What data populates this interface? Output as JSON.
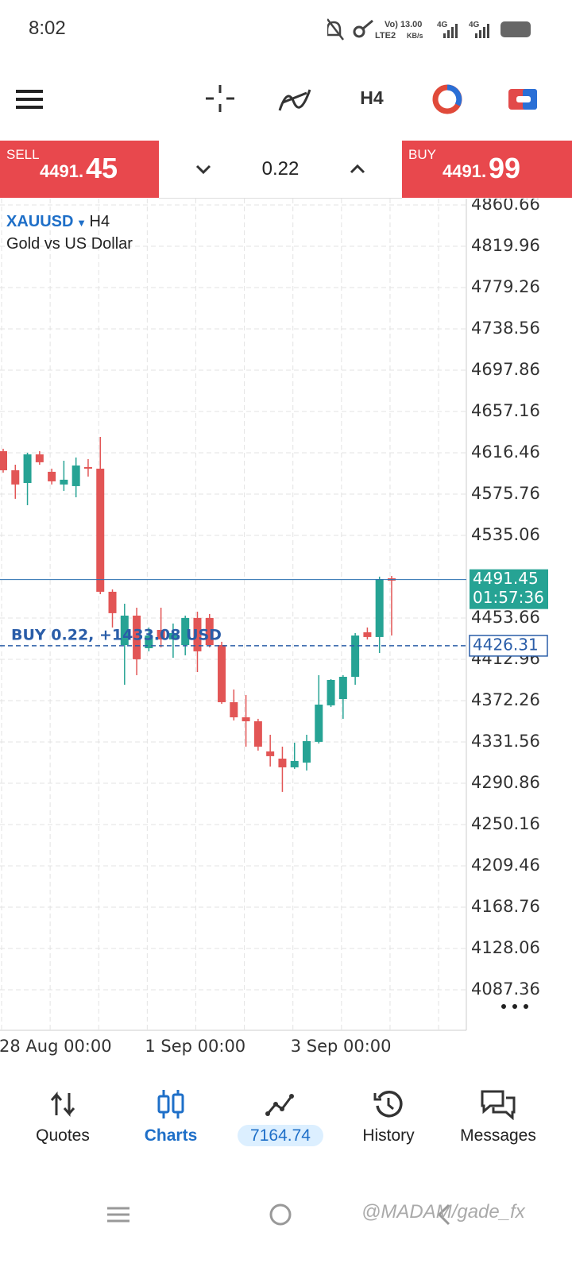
{
  "status_bar": {
    "time": "8:02",
    "speed": "3.00",
    "speed_unit": "KB/s",
    "network_1": "4G",
    "network_2": "4G",
    "sim": "LTE2"
  },
  "toolbar": {
    "timeframe": "H4"
  },
  "trade_panel": {
    "sell_label": "SELL",
    "sell_price_main": "4491.",
    "sell_price_big": "45",
    "volume": "0.22",
    "buy_label": "BUY",
    "buy_price_main": "4491.",
    "buy_price_big": "99"
  },
  "chart_data": {
    "type": "candlestick",
    "symbol": "XAUUSD",
    "timeframe": "H4",
    "description": "Gold vs US Dollar",
    "categories": [
      "28 Aug 00:00",
      null,
      null,
      null,
      null,
      null,
      null,
      null,
      null,
      null,
      null,
      null,
      "1 Sep 00:00",
      null,
      null,
      null,
      null,
      null,
      null,
      null,
      null,
      null,
      null,
      null,
      "3 Sep 00:00",
      null,
      null,
      null,
      null,
      null,
      null,
      null,
      null
    ],
    "open": [
      4618.0,
      4599.2,
      4586.7,
      4614.9,
      4597.7,
      4585.2,
      4583.6,
      4602.4,
      4600.8,
      4479.5,
      4427.0,
      4456.0,
      4423.9,
      4441.9,
      4432.5,
      4427.0,
      4453.7,
      4453.7,
      4427.0,
      4370.7,
      4355.8,
      4351.9,
      4322.2,
      4315.1,
      4306.5,
      4311.2,
      4331.6,
      4367.6,
      4373.8,
      4395.7,
      4439.6,
      4434.9,
      4492.8
    ],
    "high": [
      4620.4,
      4604.7,
      4616.5,
      4618.0,
      4600.8,
      4608.6,
      4611.8,
      4610.2,
      4632.1,
      4481.8,
      4467.7,
      4463.8,
      4444.3,
      4463.8,
      4448.2,
      4456.0,
      4459.9,
      4457.6,
      4430.2,
      4383.2,
      4377.7,
      4354.3,
      4338.6,
      4326.9,
      4330.8,
      4338.6,
      4397.3,
      4393.4,
      4397.3,
      4438.8,
      4444.3,
      4494.4,
      4495.1
    ],
    "low": [
      4596.9,
      4571.1,
      4564.8,
      4604.7,
      4585.2,
      4578.9,
      4572.6,
      4593.0,
      4477.1,
      4444.3,
      4387.9,
      4397.3,
      4420.8,
      4424.7,
      4414.5,
      4416.9,
      4400.4,
      4424.7,
      4369.1,
      4352.7,
      4326.9,
      4323.0,
      4307.3,
      4282.3,
      4305.0,
      4303.4,
      4330.0,
      4366.0,
      4354.3,
      4387.9,
      4432.5,
      4419.2,
      4436.4
    ],
    "close": [
      4599.2,
      4585.2,
      4614.9,
      4607.1,
      4588.3,
      4589.9,
      4603.9,
      4600.8,
      4479.5,
      4458.4,
      4456.0,
      4413.0,
      4436.4,
      4432.5,
      4438.8,
      4453.7,
      4420.8,
      4427.0,
      4370.7,
      4355.8,
      4351.9,
      4326.9,
      4317.5,
      4306.5,
      4312.8,
      4332.3,
      4368.3,
      4392.6,
      4395.7,
      4436.4,
      4434.9,
      4492.0,
      4490.5
    ],
    "up_color": "#26a394",
    "down_color": "#e25555",
    "ylim": [
      4047.4,
      4866.9
    ],
    "yticks": [
      4860.66,
      4819.96,
      4779.26,
      4738.56,
      4697.86,
      4657.16,
      4616.46,
      4575.76,
      4535.06,
      4453.66,
      4412.96,
      4372.26,
      4331.56,
      4290.86,
      4250.16,
      4209.46,
      4168.76,
      4128.06,
      4087.36
    ],
    "grid": true,
    "bid": {
      "value": 4491.45,
      "timer": "01:57:36"
    },
    "position": {
      "value": 4426.31,
      "text": "BUY 0.22, +1433.08 USD"
    }
  },
  "nav": {
    "items": [
      {
        "label": "Quotes"
      },
      {
        "label": "Charts"
      },
      {
        "label": "7164.74"
      },
      {
        "label": "History"
      },
      {
        "label": "Messages"
      }
    ]
  },
  "watermark": "@MADAM/gade_fx"
}
